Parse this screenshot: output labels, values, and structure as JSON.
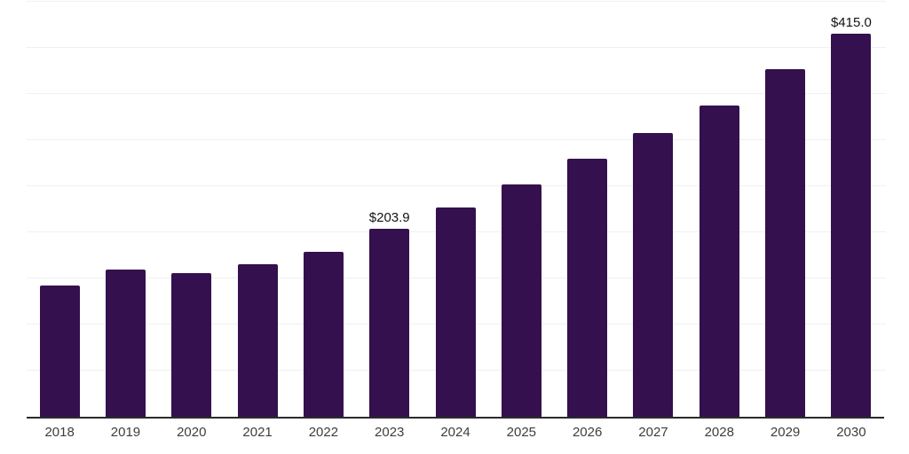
{
  "chart_data": {
    "type": "bar",
    "title": "",
    "xlabel": "",
    "ylabel": "",
    "categories": [
      "2018",
      "2019",
      "2020",
      "2021",
      "2022",
      "2023",
      "2024",
      "2025",
      "2026",
      "2027",
      "2028",
      "2029",
      "2030"
    ],
    "values": [
      142.4,
      160.0,
      155.6,
      165.2,
      178.6,
      203.9,
      226.9,
      251.9,
      279.8,
      307.7,
      337.5,
      376.9,
      415.0
    ],
    "bar_value_labels": [
      "",
      "",
      "",
      "",
      "",
      "$203.9",
      "",
      "",
      "",
      "",
      "",
      "",
      "$415.0"
    ],
    "ylim": [
      0,
      450
    ],
    "gridline_step": 50,
    "grid": true,
    "y_axis_tick_labels_visible": false,
    "legend_position": "none",
    "colors": {
      "bar": "#34104E",
      "gridline": "#F0F0F0",
      "axis_line": "#2B2B2B",
      "x_tick_label": "#3D3D3D",
      "value_label": "#131313",
      "background": "#FFFFFF"
    }
  }
}
